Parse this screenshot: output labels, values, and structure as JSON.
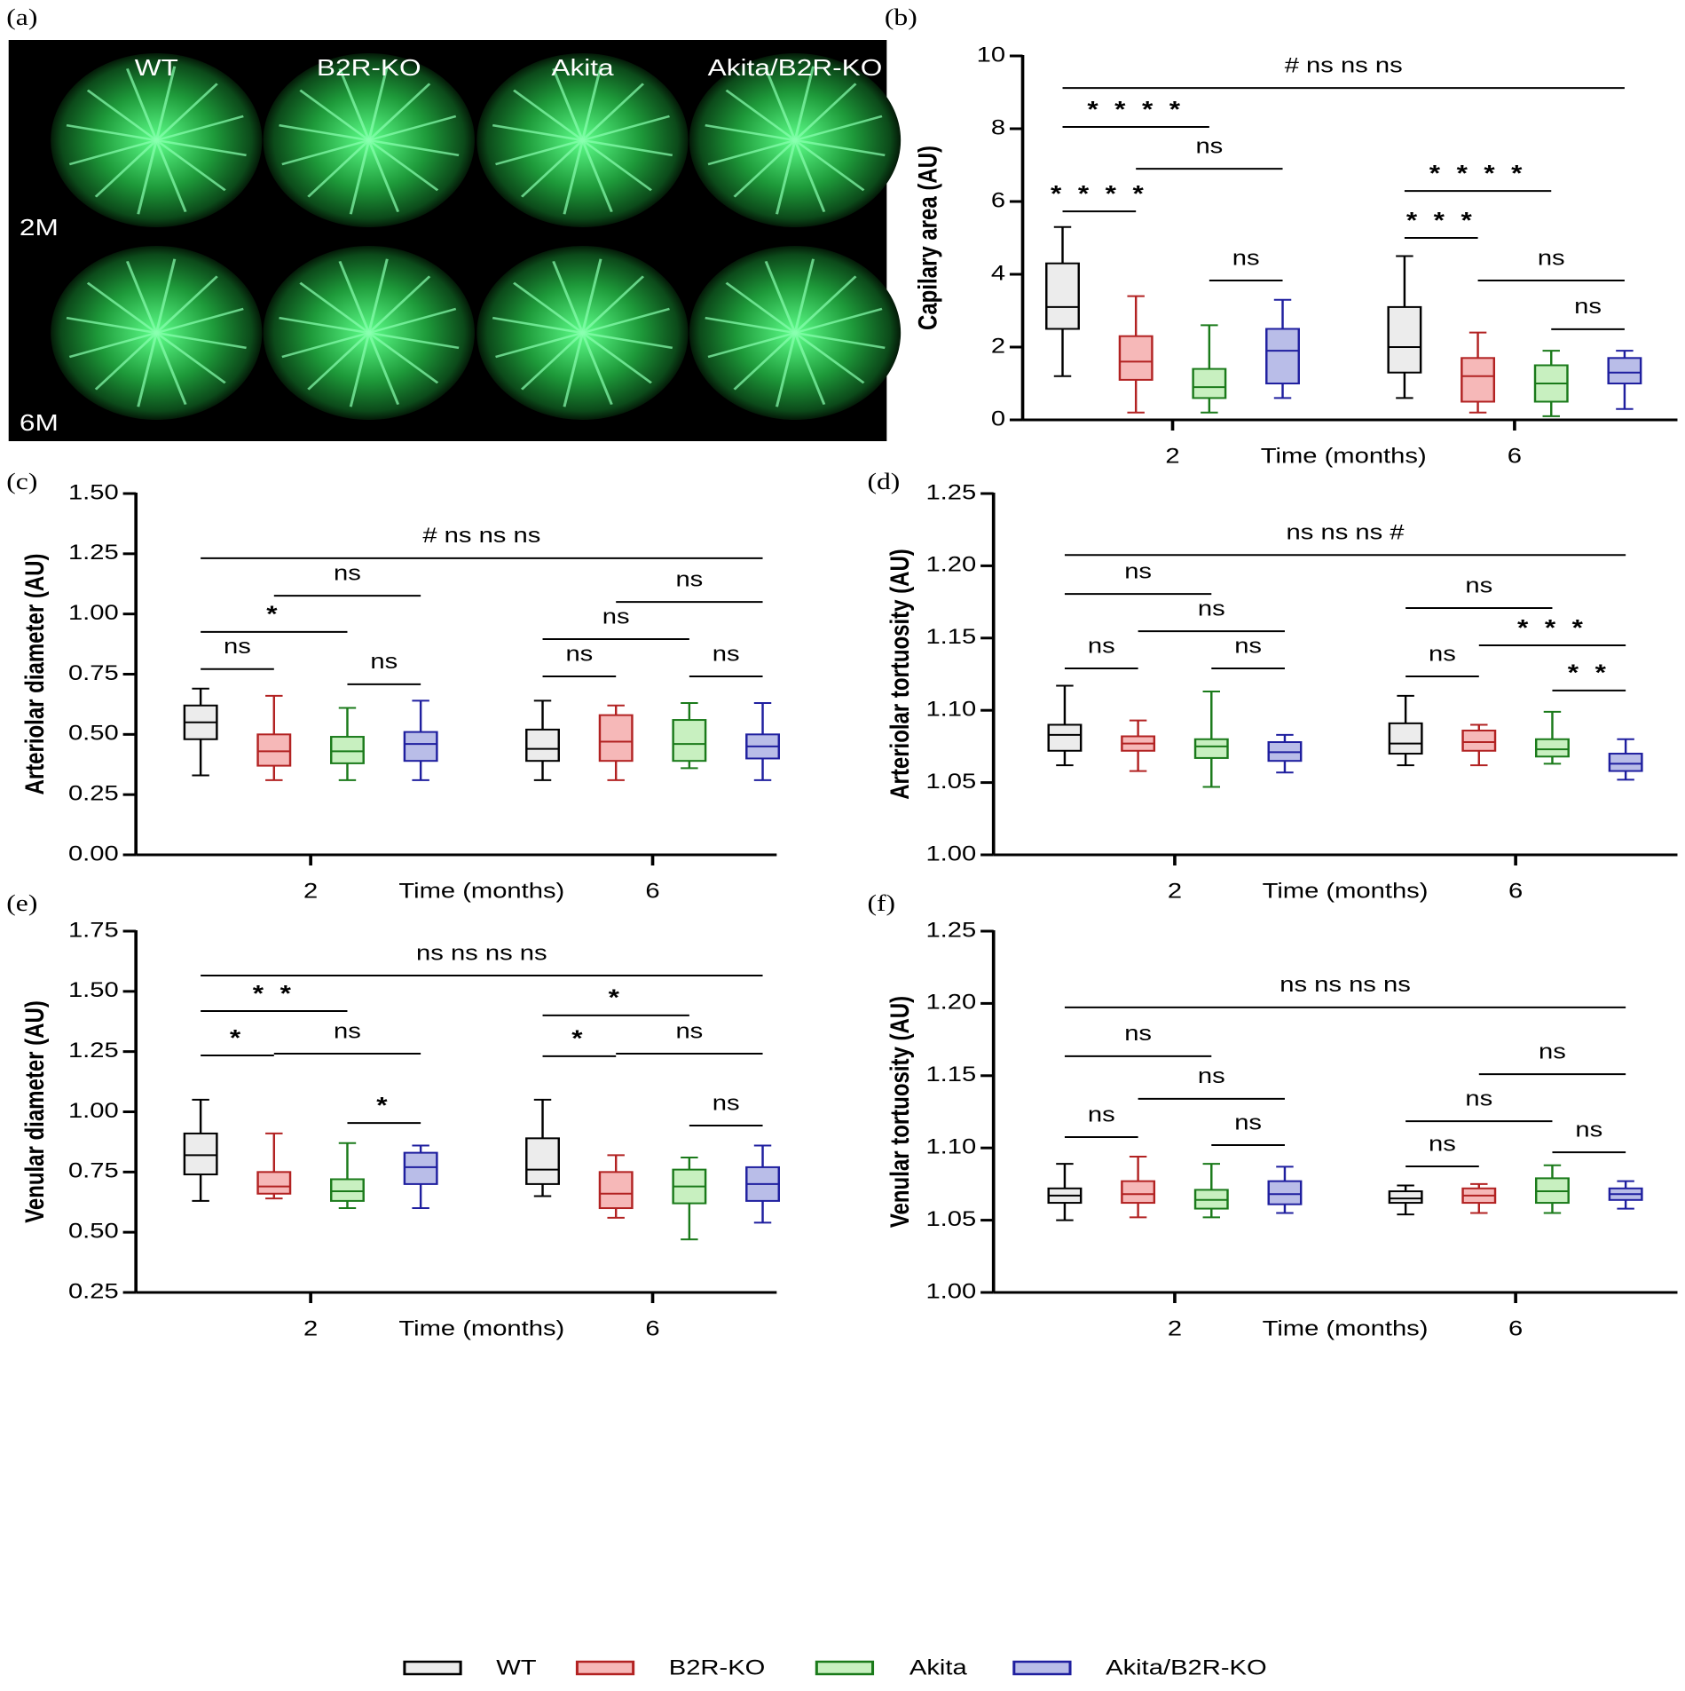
{
  "image_panel": {
    "label": "(a)",
    "columns": [
      "WT",
      "B2R-KO",
      "Akita",
      "Akita/B2R-KO"
    ],
    "rows": [
      "2M",
      "6M"
    ]
  },
  "legend": [
    {
      "name": "WT",
      "color": "#000000",
      "fill": "#ececec"
    },
    {
      "name": "B2R-KO",
      "color": "#b22222",
      "fill": "#f6b8b8"
    },
    {
      "name": "Akita",
      "color": "#1a7a1a",
      "fill": "#c8f0c0"
    },
    {
      "name": "Akita/B2R-KO",
      "color": "#1f1f9f",
      "fill": "#b9bde8"
    }
  ],
  "chart_data": [
    {
      "type": "box",
      "panel_label": "(b)",
      "y_label": "Capilary area (AU)",
      "x_label": "Time (months)",
      "categories": [
        "2",
        "6"
      ],
      "ylim": [
        0,
        10
      ],
      "yticks": [
        0,
        2,
        4,
        6,
        8,
        10
      ],
      "series": [
        {
          "min": [
            1.2,
            0.6
          ],
          "q1": [
            2.5,
            1.3
          ],
          "median": [
            3.1,
            2.0
          ],
          "q3": [
            4.3,
            3.1
          ],
          "max": [
            5.3,
            4.5
          ]
        },
        {
          "min": [
            0.2,
            0.2
          ],
          "q1": [
            1.1,
            0.5
          ],
          "median": [
            1.6,
            1.2
          ],
          "q3": [
            2.3,
            1.7
          ],
          "max": [
            3.4,
            2.4
          ]
        },
        {
          "min": [
            0.2,
            0.1
          ],
          "q1": [
            0.6,
            0.5
          ],
          "median": [
            0.9,
            1.0
          ],
          "q3": [
            1.4,
            1.5
          ],
          "max": [
            2.6,
            1.9
          ]
        },
        {
          "min": [
            0.6,
            0.3
          ],
          "q1": [
            1.0,
            1.0
          ],
          "median": [
            1.9,
            1.3
          ],
          "q3": [
            2.5,
            1.7
          ],
          "max": [
            3.3,
            1.9
          ]
        }
      ],
      "annotations": [
        "# ns ns ns",
        "* * * *",
        "ns",
        "* * * *",
        "ns",
        "* * * *",
        "* * *",
        "ns",
        "ns"
      ]
    },
    {
      "type": "box",
      "panel_label": "(c)",
      "y_label": "Arteriolar diameter (AU)",
      "x_label": "Time (months)",
      "categories": [
        "2",
        "6"
      ],
      "ylim": [
        0,
        1.5
      ],
      "yticks": [
        {
          "value": 0,
          "label": "0.00"
        },
        {
          "value": 0.25,
          "label": "0.25"
        },
        {
          "value": 0.5,
          "label": "0.50"
        },
        {
          "value": 0.75,
          "label": "0.75"
        },
        {
          "value": 1,
          "label": "1.00"
        },
        {
          "value": 1.25,
          "label": "1.25"
        },
        {
          "value": 1.5,
          "label": "1.50"
        }
      ],
      "series": [
        {
          "min": [
            0.33,
            0.31
          ],
          "q1": [
            0.48,
            0.39
          ],
          "median": [
            0.55,
            0.44
          ],
          "q3": [
            0.62,
            0.52
          ],
          "max": [
            0.69,
            0.64
          ]
        },
        {
          "min": [
            0.31,
            0.31
          ],
          "q1": [
            0.37,
            0.39
          ],
          "median": [
            0.43,
            0.47
          ],
          "q3": [
            0.5,
            0.58
          ],
          "max": [
            0.66,
            0.62
          ]
        },
        {
          "min": [
            0.31,
            0.36
          ],
          "q1": [
            0.38,
            0.39
          ],
          "median": [
            0.43,
            0.46
          ],
          "q3": [
            0.49,
            0.56
          ],
          "max": [
            0.61,
            0.63
          ]
        },
        {
          "min": [
            0.31,
            0.31
          ],
          "q1": [
            0.39,
            0.4
          ],
          "median": [
            0.46,
            0.45
          ],
          "q3": [
            0.51,
            0.5
          ],
          "max": [
            0.64,
            0.63
          ]
        }
      ],
      "annotations": [
        "# ns ns ns",
        "*",
        "ns",
        "ns",
        "ns",
        "ns",
        "ns",
        "ns",
        "ns"
      ]
    },
    {
      "type": "box",
      "panel_label": "(d)",
      "y_label": "Arteriolar tortuosity (AU)",
      "x_label": "Time (months)",
      "categories": [
        "2",
        "6"
      ],
      "ylim": [
        1,
        1.25
      ],
      "yticks": [
        {
          "value": 1,
          "label": "1.00"
        },
        {
          "value": 1.05,
          "label": "1.05"
        },
        {
          "value": 1.1,
          "label": "1.10"
        },
        {
          "value": 1.15,
          "label": "1.15"
        },
        {
          "value": 1.2,
          "label": "1.20"
        },
        {
          "value": 1.25,
          "label": "1.25"
        }
      ],
      "series": [
        {
          "min": [
            1.062,
            1.062
          ],
          "q1": [
            1.072,
            1.07
          ],
          "median": [
            1.083,
            1.077
          ],
          "q3": [
            1.09,
            1.091
          ],
          "max": [
            1.117,
            1.11
          ]
        },
        {
          "min": [
            1.058,
            1.062
          ],
          "q1": [
            1.072,
            1.072
          ],
          "median": [
            1.077,
            1.078
          ],
          "q3": [
            1.082,
            1.086
          ],
          "max": [
            1.093,
            1.09
          ]
        },
        {
          "min": [
            1.047,
            1.063
          ],
          "q1": [
            1.067,
            1.068
          ],
          "median": [
            1.075,
            1.073
          ],
          "q3": [
            1.08,
            1.08
          ],
          "max": [
            1.113,
            1.099
          ]
        },
        {
          "min": [
            1.057,
            1.052
          ],
          "q1": [
            1.065,
            1.058
          ],
          "median": [
            1.071,
            1.063
          ],
          "q3": [
            1.078,
            1.07
          ],
          "max": [
            1.083,
            1.08
          ]
        }
      ],
      "annotations": [
        "ns ns ns #",
        "ns",
        "ns",
        "ns",
        "ns",
        "ns",
        "* * *",
        "ns",
        "* *"
      ]
    },
    {
      "type": "box",
      "panel_label": "(e)",
      "y_label": "Venular diameter (AU)",
      "x_label": "Time (months)",
      "categories": [
        "2",
        "6"
      ],
      "ylim": [
        0.25,
        1.75
      ],
      "yticks": [
        {
          "value": 0.25,
          "label": "0.25"
        },
        {
          "value": 0.5,
          "label": "0.50"
        },
        {
          "value": 0.75,
          "label": "0.75"
        },
        {
          "value": 1,
          "label": "1.00"
        },
        {
          "value": 1.25,
          "label": "1.25"
        },
        {
          "value": 1.5,
          "label": "1.50"
        },
        {
          "value": 1.75,
          "label": "1.75"
        }
      ],
      "series": [
        {
          "min": [
            0.63,
            0.65
          ],
          "q1": [
            0.74,
            0.7
          ],
          "median": [
            0.82,
            0.76
          ],
          "q3": [
            0.91,
            0.89
          ],
          "max": [
            1.05,
            1.05
          ]
        },
        {
          "min": [
            0.64,
            0.56
          ],
          "q1": [
            0.66,
            0.6
          ],
          "median": [
            0.69,
            0.66
          ],
          "q3": [
            0.75,
            0.75
          ],
          "max": [
            0.91,
            0.82
          ]
        },
        {
          "min": [
            0.6,
            0.47
          ],
          "q1": [
            0.63,
            0.62
          ],
          "median": [
            0.67,
            0.69
          ],
          "q3": [
            0.72,
            0.76
          ],
          "max": [
            0.87,
            0.81
          ]
        },
        {
          "min": [
            0.6,
            0.54
          ],
          "q1": [
            0.7,
            0.63
          ],
          "median": [
            0.77,
            0.7
          ],
          "q3": [
            0.83,
            0.77
          ],
          "max": [
            0.86,
            0.86
          ]
        }
      ],
      "annotations": [
        "ns ns ns ns",
        "* *",
        "ns",
        "*",
        "*",
        "*",
        "ns",
        "*",
        "ns"
      ]
    },
    {
      "type": "box",
      "panel_label": "(f)",
      "y_label": "Venular tortuosity (AU)",
      "x_label": "Time (months)",
      "categories": [
        "2",
        "6"
      ],
      "ylim": [
        1,
        1.25
      ],
      "yticks": [
        {
          "value": 1,
          "label": "1.00"
        },
        {
          "value": 1.05,
          "label": "1.05"
        },
        {
          "value": 1.1,
          "label": "1.10"
        },
        {
          "value": 1.15,
          "label": "1.15"
        },
        {
          "value": 1.2,
          "label": "1.20"
        },
        {
          "value": 1.25,
          "label": "1.25"
        }
      ],
      "series": [
        {
          "min": [
            1.05,
            1.054
          ],
          "q1": [
            1.062,
            1.062
          ],
          "median": [
            1.067,
            1.065
          ],
          "q3": [
            1.072,
            1.07
          ],
          "max": [
            1.089,
            1.074
          ]
        },
        {
          "min": [
            1.052,
            1.055
          ],
          "q1": [
            1.062,
            1.062
          ],
          "median": [
            1.068,
            1.067
          ],
          "q3": [
            1.077,
            1.072
          ],
          "max": [
            1.094,
            1.075
          ]
        },
        {
          "min": [
            1.052,
            1.055
          ],
          "q1": [
            1.058,
            1.062
          ],
          "median": [
            1.064,
            1.07
          ],
          "q3": [
            1.071,
            1.079
          ],
          "max": [
            1.089,
            1.088
          ]
        },
        {
          "min": [
            1.055,
            1.058
          ],
          "q1": [
            1.061,
            1.064
          ],
          "median": [
            1.068,
            1.068
          ],
          "q3": [
            1.077,
            1.072
          ],
          "max": [
            1.087,
            1.077
          ]
        }
      ],
      "annotations": [
        "ns ns ns ns",
        "ns",
        "ns",
        "ns",
        "ns",
        "ns",
        "ns",
        "ns",
        "ns"
      ]
    }
  ]
}
